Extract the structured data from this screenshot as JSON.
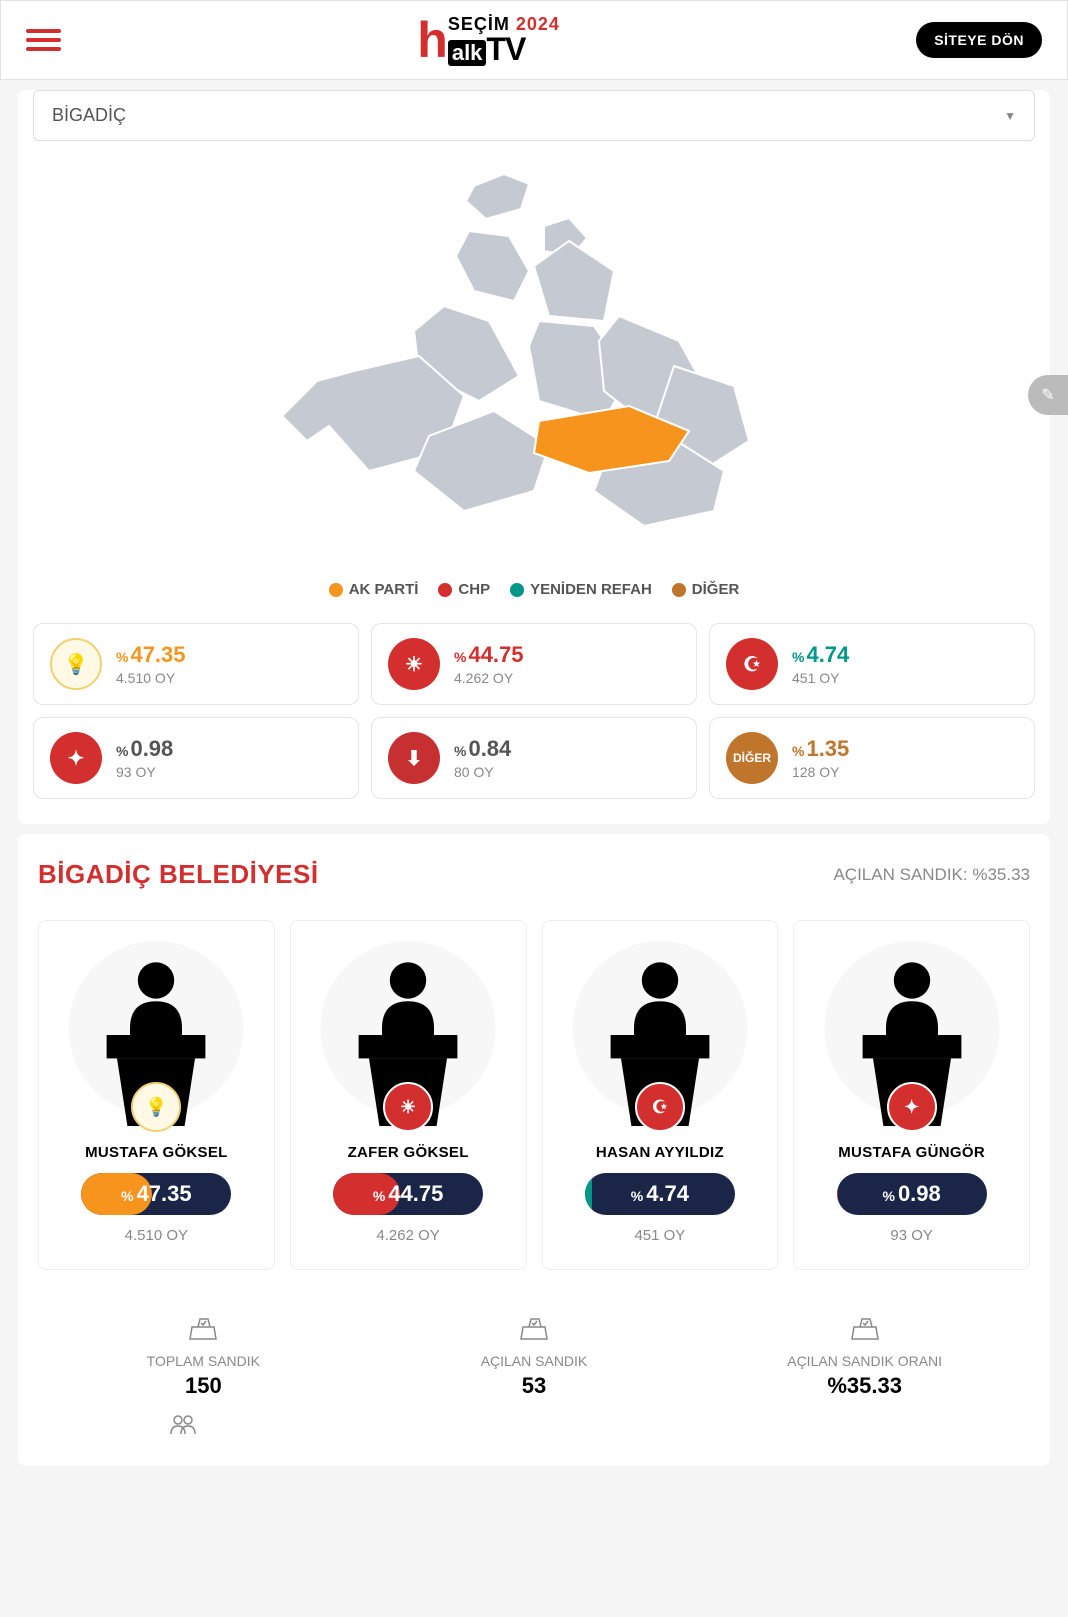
{
  "header": {
    "logo_secim": "SEÇİM",
    "logo_year": "2024",
    "siteye_don": "SİTEYE DÖN"
  },
  "district_selector": {
    "value": "BİGADİÇ"
  },
  "colors": {
    "akparti": "#f7941e",
    "chp": "#d32f2f",
    "yenidenrefah": "#009688",
    "diger": "#c0752d",
    "saadet_red": "#d32f2f",
    "zafer_red": "#c73030",
    "map_grey": "#c4c9d2",
    "map_highlight": "#f7941e",
    "pill_bg": "#1a2547"
  },
  "legend": [
    {
      "label": "AK PARTİ",
      "color": "#f7941e"
    },
    {
      "label": "CHP",
      "color": "#d32f2f"
    },
    {
      "label": "YENİDEN REFAH",
      "color": "#009688"
    },
    {
      "label": "DİĞER",
      "color": "#c0752d"
    }
  ],
  "parties": [
    {
      "pct": "47.35",
      "votes": "4.510 OY",
      "color": "#f7941e",
      "logo_bg": "#fff9e6",
      "logo_border": "#f0d070",
      "glyph": "💡",
      "name": "akparti"
    },
    {
      "pct": "44.75",
      "votes": "4.262 OY",
      "color": "#d32f2f",
      "logo_bg": "#d32f2f",
      "glyph": "☀",
      "name": "chp"
    },
    {
      "pct": "4.74",
      "votes": "451 OY",
      "color": "#009688",
      "logo_bg": "#d32f2f",
      "glyph": "☪",
      "name": "yenidenrefah"
    },
    {
      "pct": "0.98",
      "votes": "93 OY",
      "color": "#555",
      "logo_bg": "#d32f2f",
      "glyph": "✦",
      "name": "saadet"
    },
    {
      "pct": "0.84",
      "votes": "80 OY",
      "color": "#555",
      "logo_bg": "#c73030",
      "glyph": "⬇",
      "name": "zafer"
    },
    {
      "pct": "1.35",
      "votes": "128 OY",
      "color": "#c0752d",
      "logo_bg": "#c0752d",
      "glyph": "DİĞER",
      "name": "diger",
      "glyph_size": "12px"
    }
  ],
  "section2": {
    "title": "BİGADİÇ BELEDİYESİ",
    "acilan_label": "AÇILAN SANDIK: %35.33"
  },
  "candidates": [
    {
      "name": "MUSTAFA GÖKSEL",
      "pct": "47.35",
      "votes": "4.510 OY",
      "fill_pct": 47.35,
      "fill_color": "#f7941e",
      "badge_bg": "#fff9e6",
      "badge_border": "#f0d070",
      "badge_glyph": "💡"
    },
    {
      "name": "ZAFER GÖKSEL",
      "pct": "44.75",
      "votes": "4.262 OY",
      "fill_pct": 44.75,
      "fill_color": "#d32f2f",
      "badge_bg": "#d32f2f",
      "badge_glyph": "☀"
    },
    {
      "name": "HASAN AYYILDIZ",
      "pct": "4.74",
      "votes": "451 OY",
      "fill_pct": 4.74,
      "fill_color": "#009688",
      "badge_bg": "#d32f2f",
      "badge_glyph": "☪"
    },
    {
      "name": "MUSTAFA GÜNGÖR",
      "pct": "0.98",
      "votes": "93 OY",
      "fill_pct": 0.98,
      "fill_color": "#d32f2f",
      "badge_bg": "#d32f2f",
      "badge_glyph": "✦"
    }
  ],
  "stats": [
    {
      "label": "TOPLAM SANDIK",
      "value": "150"
    },
    {
      "label": "AÇILAN SANDIK",
      "value": "53"
    },
    {
      "label": "AÇILAN SANDIK ORANI",
      "value": "%35.33"
    }
  ]
}
